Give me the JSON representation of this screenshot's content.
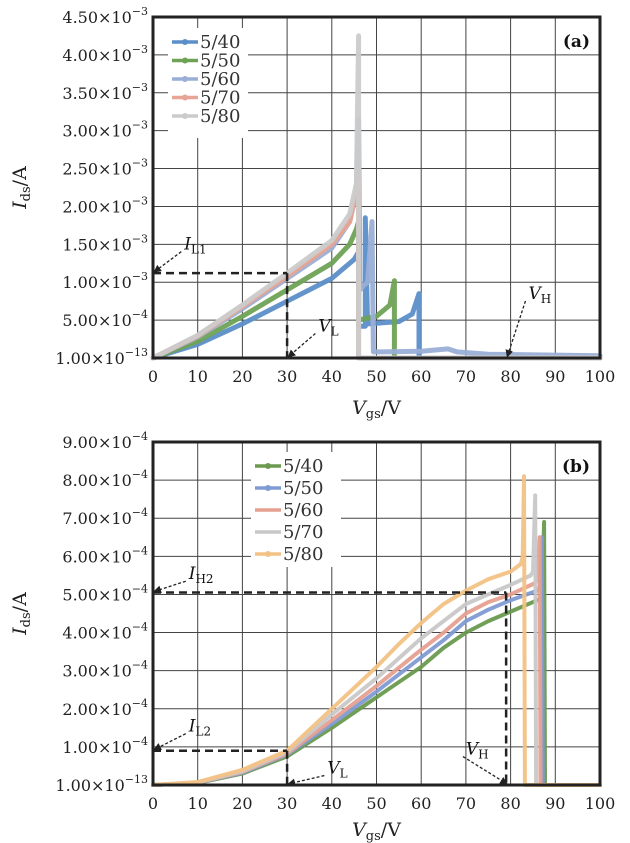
{
  "chart_data": [
    {
      "type": "line",
      "panel_label": "(a)",
      "xlabel": {
        "main": "V",
        "sub": "gs",
        "unit": "/V"
      },
      "ylabel": {
        "main": "I",
        "sub": "ds",
        "unit": "/A"
      },
      "xlim": [
        0,
        100
      ],
      "ylim": [
        0,
        0.0045
      ],
      "grid": true,
      "legend_position": "top-left",
      "xticks": [
        "0",
        "10",
        "20",
        "30",
        "40",
        "50",
        "60",
        "70",
        "80",
        "90",
        "100"
      ],
      "yticks": [
        {
          "value": 0,
          "mantissa": "1.00",
          "exp": "−13"
        },
        {
          "value": 0.0005,
          "mantissa": "5.00",
          "exp": "−4"
        },
        {
          "value": 0.001,
          "mantissa": "1.00",
          "exp": "−3"
        },
        {
          "value": 0.0015,
          "mantissa": "1.50",
          "exp": "−3"
        },
        {
          "value": 0.002,
          "mantissa": "2.00",
          "exp": "−3"
        },
        {
          "value": 0.0025,
          "mantissa": "2.50",
          "exp": "−3"
        },
        {
          "value": 0.003,
          "mantissa": "3.00",
          "exp": "−3"
        },
        {
          "value": 0.0035,
          "mantissa": "3.50",
          "exp": "−3"
        },
        {
          "value": 0.004,
          "mantissa": "4.00",
          "exp": "−3"
        },
        {
          "value": 0.0045,
          "mantissa": "4.50",
          "exp": "−3"
        }
      ],
      "series": [
        {
          "name": "5/40",
          "color": "#5b8fc9",
          "marker": "square",
          "x": [
            0,
            10,
            20,
            30,
            40,
            45,
            46,
            46,
            47.5,
            47.5,
            48,
            55,
            58,
            59.5,
            59.5,
            100
          ],
          "y": [
            0,
            0.00018,
            0.00045,
            0.00075,
            0.00105,
            0.0013,
            0.0014,
            0.00042,
            0.00042,
            0.00185,
            0.00045,
            0.00048,
            0.00058,
            0.00085,
            0,
            0
          ]
        },
        {
          "name": "5/50",
          "color": "#6ea255",
          "marker": "triangle",
          "x": [
            0,
            10,
            20,
            30,
            40,
            44,
            45.5,
            46,
            46,
            50,
            53,
            54,
            54,
            100
          ],
          "y": [
            0,
            0.00022,
            0.00055,
            0.0009,
            0.00125,
            0.0015,
            0.0017,
            0.0018,
            0.0005,
            0.00055,
            0.0007,
            0.00102,
            0,
            0
          ]
        },
        {
          "name": "5/60",
          "color": "#9aaed6",
          "marker": "x",
          "x": [
            0,
            10,
            20,
            30,
            40,
            44,
            45.5,
            46,
            46.3,
            47,
            48,
            49,
            49.3,
            50,
            60,
            66,
            68,
            75,
            100
          ],
          "y": [
            0,
            0.00028,
            0.00065,
            0.00105,
            0.00145,
            0.0018,
            0.0022,
            0.00315,
            0.0009,
            0.00095,
            0.001,
            0.0018,
            8e-05,
            8e-05,
            9e-05,
            0.00012,
            8e-05,
            5e-05,
            3e-05
          ]
        },
        {
          "name": "5/70",
          "color": "#e8a494",
          "marker": "star",
          "x": [
            0,
            10,
            20,
            30,
            40,
            44,
            45.5,
            46,
            46,
            100
          ],
          "y": [
            0,
            0.00029,
            0.00068,
            0.00108,
            0.0015,
            0.0018,
            0.0022,
            0.0024,
            0,
            0
          ]
        },
        {
          "name": "5/80",
          "color": "#cbcbcb",
          "marker": "circle",
          "x": [
            0,
            10,
            20,
            30,
            40,
            44,
            45.5,
            46,
            46,
            100
          ],
          "y": [
            0,
            0.0003,
            0.0007,
            0.00112,
            0.00155,
            0.0019,
            0.0023,
            0.00425,
            0,
            0
          ]
        }
      ],
      "guides": [
        {
          "x": [
            0,
            30
          ],
          "y": [
            0.00112,
            0.00112
          ]
        },
        {
          "x": [
            30,
            30
          ],
          "y": [
            0.00112,
            0
          ]
        }
      ],
      "annotations": [
        {
          "label": "I",
          "sub": "L1",
          "text_at": [
            7,
            0.00143
          ],
          "arrow_to": [
            0,
            0.00112
          ]
        },
        {
          "label": "V",
          "sub": "L",
          "text_at": [
            37,
            0.00035
          ],
          "arrow_to": [
            30,
            0
          ]
        },
        {
          "label": "V",
          "sub": "H",
          "text_at": [
            84,
            0.00078
          ],
          "arrow_to": [
            79,
            0
          ]
        }
      ]
    },
    {
      "type": "line",
      "panel_label": "(b)",
      "xlabel": {
        "main": "V",
        "sub": "gs",
        "unit": "/V"
      },
      "ylabel": {
        "main": "I",
        "sub": "ds",
        "unit": "/A"
      },
      "xlim": [
        0,
        100
      ],
      "ylim": [
        0,
        0.0009
      ],
      "grid": true,
      "legend_position": "top-center-left",
      "xticks": [
        "0",
        "10",
        "20",
        "30",
        "40",
        "50",
        "60",
        "70",
        "80",
        "90",
        "100"
      ],
      "yticks": [
        {
          "value": 0,
          "mantissa": "1.00",
          "exp": "−13"
        },
        {
          "value": 0.0001,
          "mantissa": "1.00",
          "exp": "−4"
        },
        {
          "value": 0.0002,
          "mantissa": "2.00",
          "exp": "−4"
        },
        {
          "value": 0.0003,
          "mantissa": "3.00",
          "exp": "−4"
        },
        {
          "value": 0.0004,
          "mantissa": "4.00",
          "exp": "−4"
        },
        {
          "value": 0.0005,
          "mantissa": "5.00",
          "exp": "−4"
        },
        {
          "value": 0.0006,
          "mantissa": "6.00",
          "exp": "−4"
        },
        {
          "value": 0.0007,
          "mantissa": "7.00",
          "exp": "−4"
        },
        {
          "value": 0.0008,
          "mantissa": "8.00",
          "exp": "−4"
        },
        {
          "value": 0.0009,
          "mantissa": "9.00",
          "exp": "−4"
        }
      ],
      "series": [
        {
          "name": "5/40",
          "color": "#6a9a4f",
          "marker": "circle",
          "x": [
            0,
            10,
            20,
            30,
            40,
            50,
            60,
            65,
            70,
            75,
            80,
            86,
            87,
            87.5,
            87.7,
            100
          ],
          "y": [
            0,
            5e-06,
            3e-05,
            7.5e-05,
            0.00015,
            0.00023,
            0.00031,
            0.00036,
            0.0004,
            0.00043,
            0.000455,
            0.000485,
            0.00049,
            0.00069,
            0,
            0
          ]
        },
        {
          "name": "5/50",
          "color": "#7f9bd3",
          "marker": "plus",
          "x": [
            0,
            10,
            20,
            30,
            40,
            50,
            60,
            65,
            70,
            75,
            80,
            86,
            86.6,
            87,
            87.2,
            100
          ],
          "y": [
            0,
            6e-06,
            3.2e-05,
            8e-05,
            0.00016,
            0.000245,
            0.000335,
            0.00038,
            0.00043,
            0.00046,
            0.000485,
            0.00051,
            0.00052,
            0.00065,
            0,
            0
          ]
        },
        {
          "name": "5/60",
          "color": "#e5a090",
          "marker": "none",
          "x": [
            0,
            10,
            20,
            30,
            40,
            50,
            60,
            65,
            70,
            75,
            80,
            85.5,
            86,
            86.5,
            86.7,
            100
          ],
          "y": [
            0,
            6e-06,
            3.4e-05,
            8.2e-05,
            0.00017,
            0.00026,
            0.000355,
            0.0004,
            0.00045,
            0.00048,
            0.0005,
            0.00053,
            0.00054,
            0.00065,
            0,
            0
          ]
        },
        {
          "name": "5/70",
          "color": "#c8c8c8",
          "marker": "none",
          "x": [
            0,
            10,
            20,
            30,
            40,
            50,
            60,
            65,
            70,
            75,
            80,
            84.5,
            85,
            85.5,
            85.7,
            100
          ],
          "y": [
            0,
            7e-06,
            3.6e-05,
            8.6e-05,
            0.000185,
            0.00028,
            0.000385,
            0.00043,
            0.000475,
            0.0005,
            0.000525,
            0.00055,
            0.00056,
            0.00076,
            0,
            0
          ]
        },
        {
          "name": "5/80",
          "color": "#f3c285",
          "marker": "star",
          "x": [
            0,
            10,
            20,
            30,
            40,
            50,
            55,
            60,
            65,
            70,
            75,
            80,
            82.3,
            82.7,
            83,
            83.2,
            100
          ],
          "y": [
            0,
            8e-06,
            4e-05,
            9e-05,
            0.0002,
            0.00031,
            0.00037,
            0.000425,
            0.000475,
            0.00051,
            0.00054,
            0.00056,
            0.00058,
            0.0006,
            0.00081,
            0,
            0
          ]
        }
      ],
      "guides": [
        {
          "x": [
            0,
            79
          ],
          "y": [
            0.000505,
            0.000505
          ]
        },
        {
          "x": [
            79,
            79
          ],
          "y": [
            0.000505,
            0
          ]
        },
        {
          "x": [
            0,
            30
          ],
          "y": [
            9e-05,
            9e-05
          ]
        },
        {
          "x": [
            30,
            30
          ],
          "y": [
            9e-05,
            0
          ]
        }
      ],
      "annotations": [
        {
          "label": "I",
          "sub": "H2",
          "text_at": [
            8,
            0.00054
          ],
          "arrow_to": [
            0,
            0.000505
          ]
        },
        {
          "label": "I",
          "sub": "L2",
          "text_at": [
            8,
            0.00014
          ],
          "arrow_to": [
            0,
            9e-05
          ]
        },
        {
          "label": "V",
          "sub": "L",
          "text_at": [
            39,
            3e-05
          ],
          "arrow_to": [
            30,
            0
          ]
        },
        {
          "label": "V",
          "sub": "H",
          "text_at": [
            70,
            8e-05
          ],
          "arrow_to": [
            79,
            0
          ]
        }
      ]
    }
  ]
}
